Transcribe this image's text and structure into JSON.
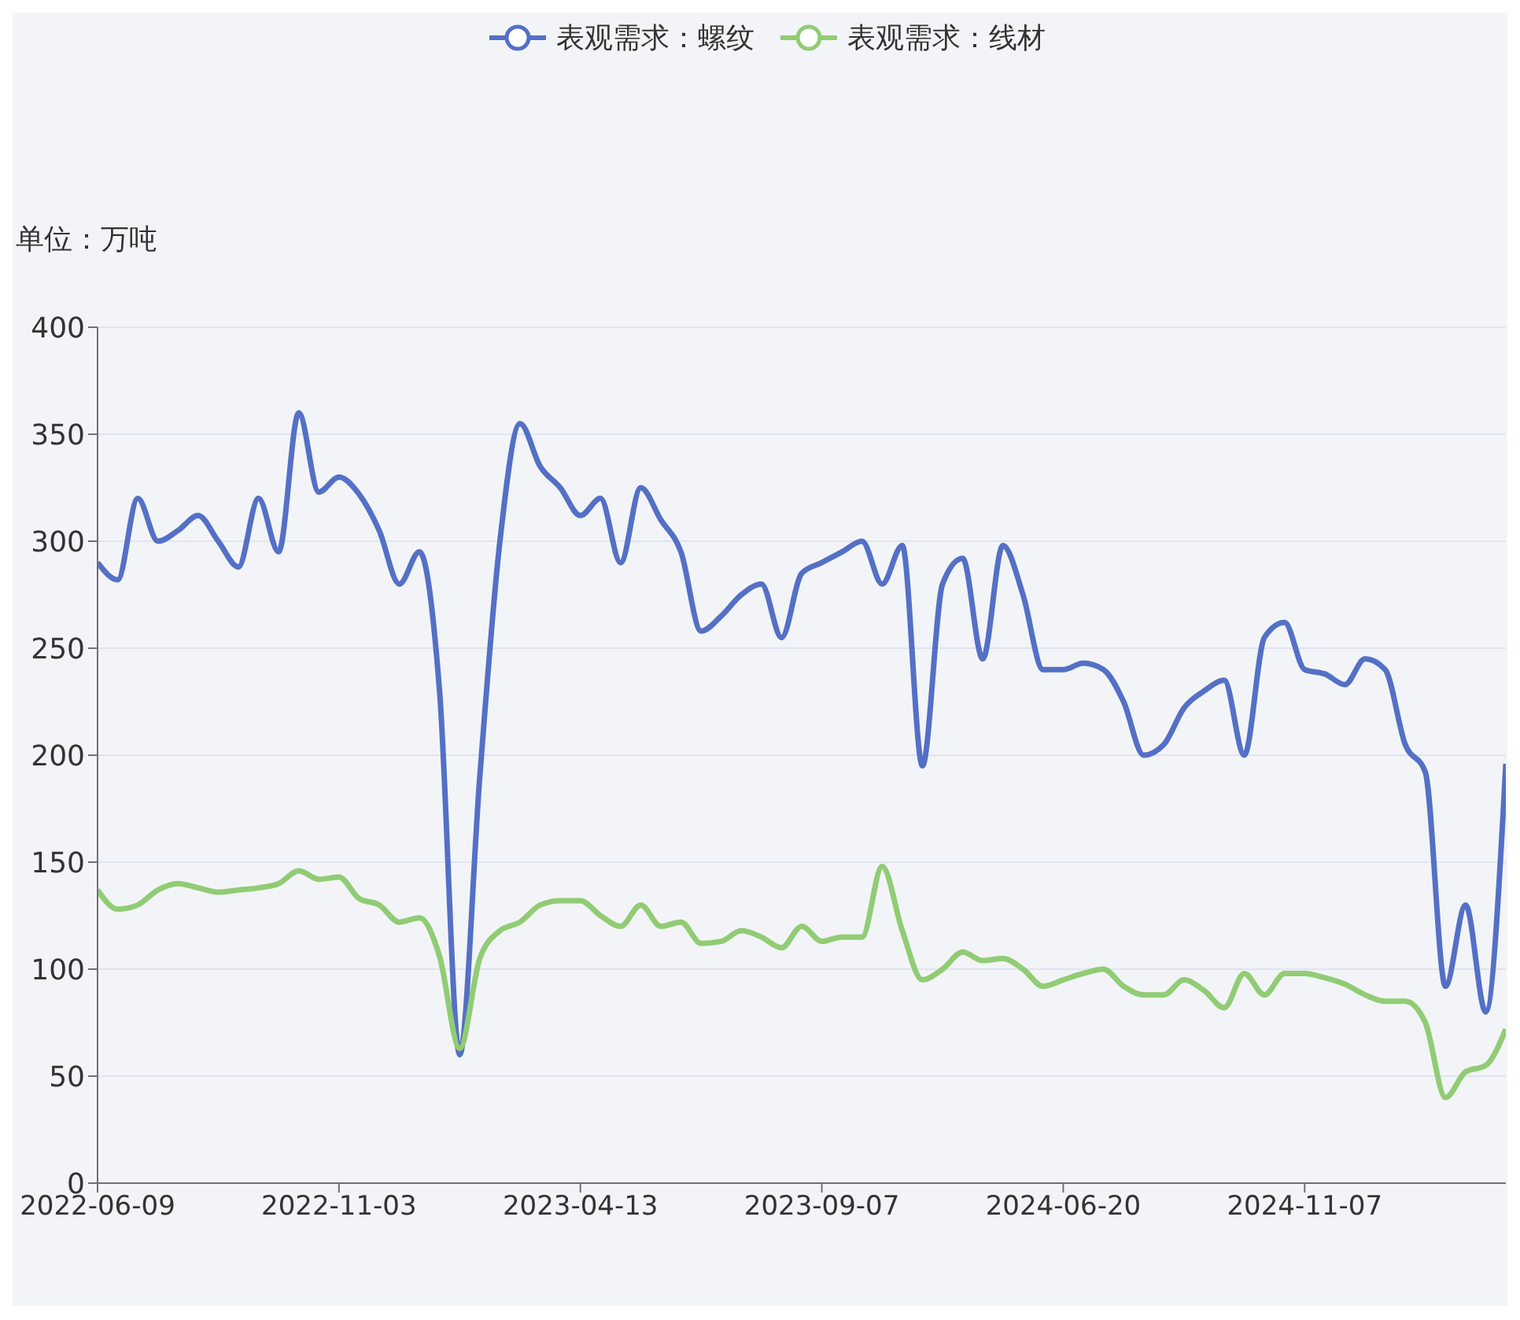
{
  "chart_data": {
    "type": "line",
    "ylabel": "单位：万吨",
    "categories": [
      "2022-06-09",
      null,
      null,
      null,
      null,
      null,
      null,
      null,
      null,
      null,
      null,
      null,
      "2022-11-03",
      null,
      null,
      null,
      null,
      null,
      null,
      null,
      null,
      null,
      null,
      null,
      "2023-04-13",
      null,
      null,
      null,
      null,
      null,
      null,
      null,
      null,
      null,
      null,
      null,
      "2023-09-07",
      null,
      null,
      null,
      null,
      null,
      null,
      null,
      null,
      null,
      null,
      null,
      "2024-06-20",
      null,
      null,
      null,
      null,
      null,
      null,
      null,
      null,
      null,
      null,
      null,
      "2024-11-07",
      null,
      null,
      null,
      null,
      null,
      null,
      null,
      null,
      null,
      null
    ],
    "series": [
      {
        "name": "表观需求：螺纹",
        "color": "#5470c6",
        "values": [
          290,
          282,
          320,
          300,
          305,
          312,
          300,
          288,
          320,
          295,
          360,
          323,
          330,
          322,
          305,
          280,
          295,
          230,
          60,
          190,
          300,
          355,
          335,
          325,
          312,
          320,
          290,
          325,
          310,
          295,
          258,
          265,
          275,
          280,
          255,
          285,
          290,
          295,
          300,
          280,
          298,
          195,
          280,
          292,
          245,
          298,
          275,
          240,
          240,
          243,
          240,
          225,
          200,
          205,
          222,
          230,
          235,
          200,
          255,
          262,
          240,
          238,
          233,
          245,
          240,
          205,
          192,
          92,
          130,
          80,
          196
        ]
      },
      {
        "name": "表观需求：线材",
        "color": "#91cc75",
        "values": [
          137,
          128,
          130,
          137,
          140,
          138,
          136,
          137,
          138,
          140,
          146,
          142,
          143,
          133,
          130,
          122,
          124,
          106,
          63,
          105,
          118,
          122,
          130,
          132,
          132,
          125,
          120,
          130,
          120,
          122,
          112,
          113,
          118,
          115,
          110,
          120,
          113,
          115,
          115,
          148,
          118,
          95,
          100,
          108,
          104,
          105,
          100,
          92,
          95,
          98,
          100,
          92,
          88,
          88,
          95,
          90,
          82,
          98,
          88,
          98,
          98,
          96,
          93,
          88,
          85,
          85,
          75,
          40,
          52,
          55,
          72
        ]
      }
    ],
    "ylim": [
      0,
      400
    ],
    "yticks": [
      0,
      50,
      100,
      150,
      200,
      250,
      300,
      350,
      400
    ],
    "grid": "y",
    "legend": "top",
    "marker": "none",
    "line_style": "solid"
  }
}
